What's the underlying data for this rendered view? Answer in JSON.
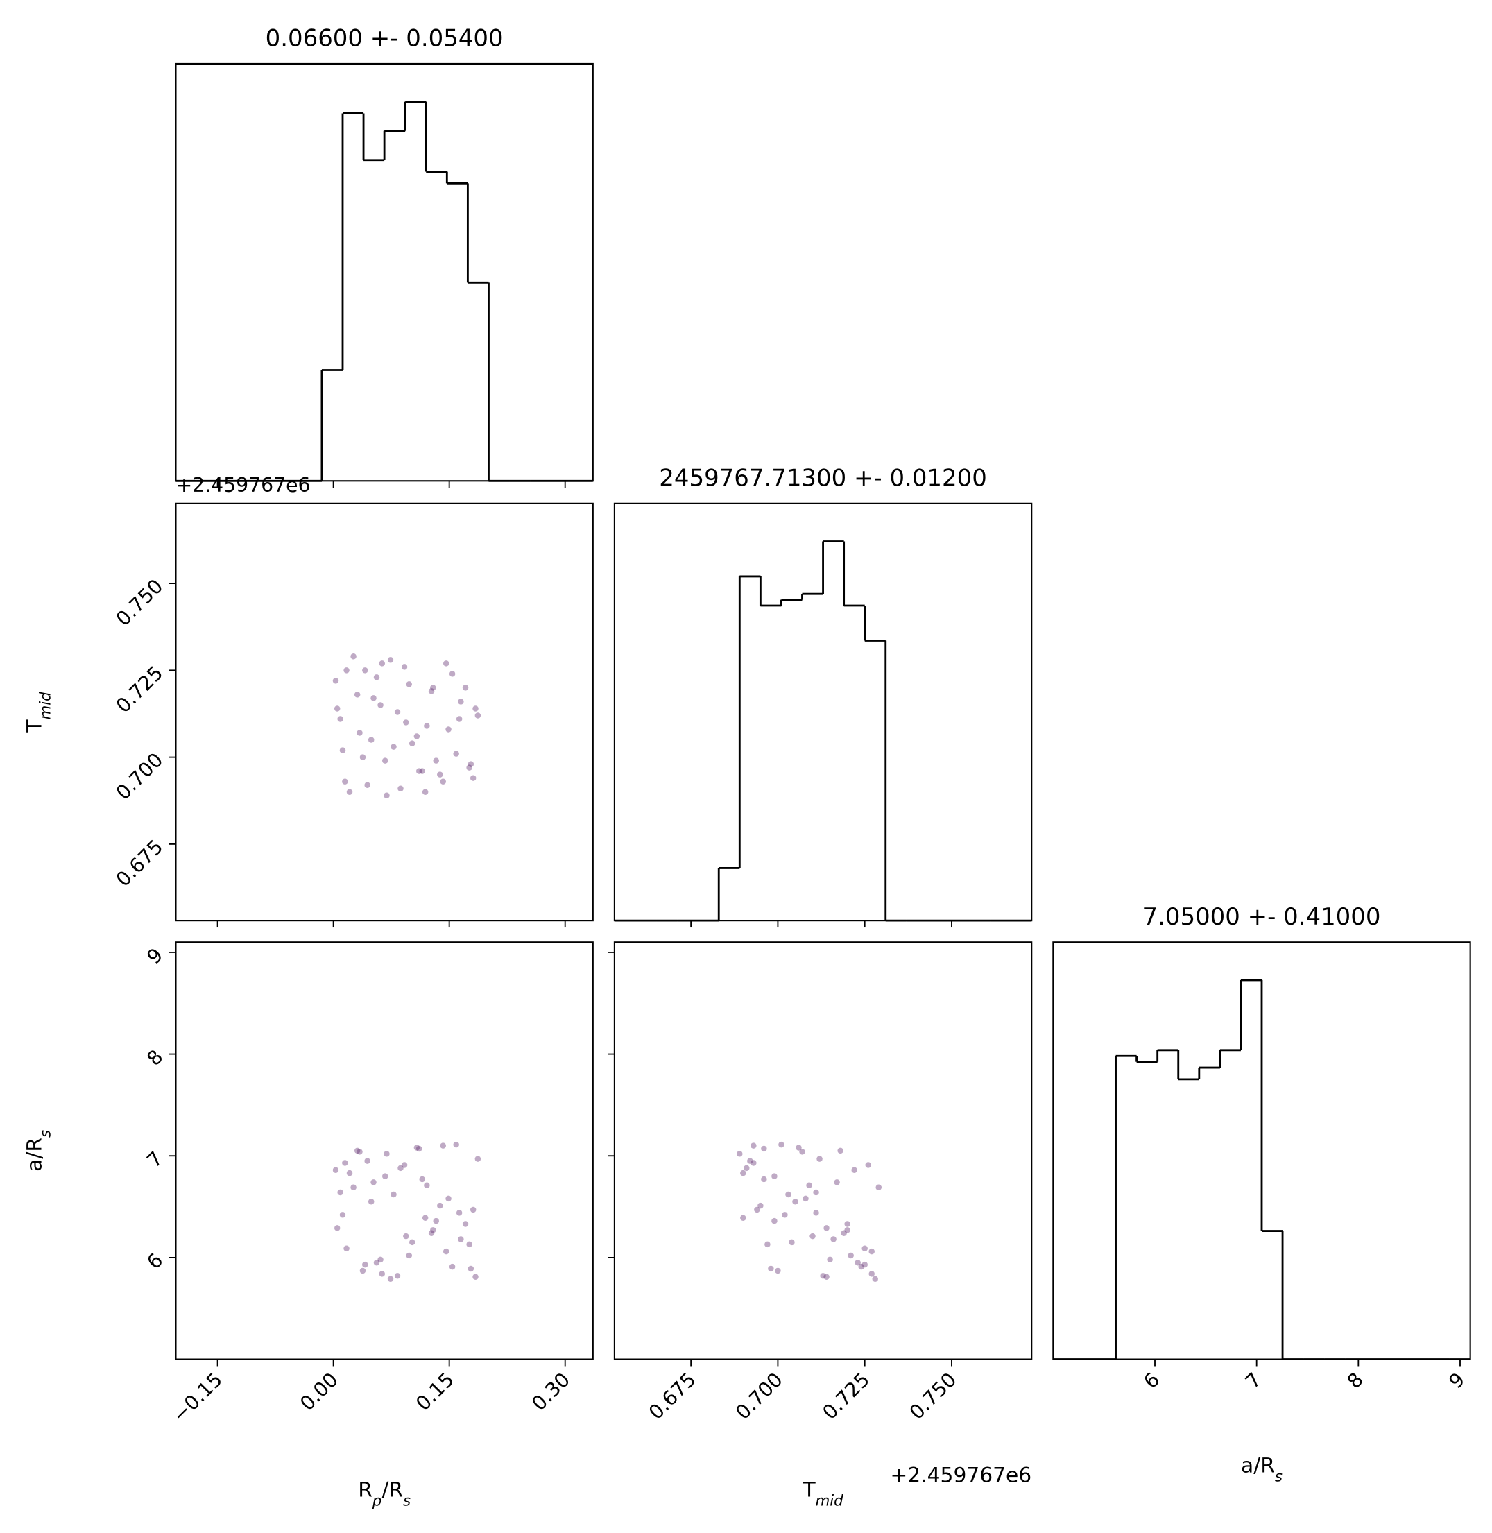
{
  "chart_data": [
    {
      "type": "hist",
      "title": "0.06600 +- 0.05400",
      "color": "#000000",
      "bins": [
        -0.204,
        -0.177,
        -0.15,
        -0.123,
        -0.096,
        -0.069,
        -0.042,
        -0.015,
        0.012,
        0.039,
        0.066,
        0.093,
        0.12,
        0.147,
        0.174,
        0.201,
        0.228,
        0.255,
        0.282,
        0.309,
        0.336
      ],
      "counts": [
        0,
        0,
        0,
        0,
        0,
        0,
        0,
        19,
        63,
        55,
        60,
        65,
        53,
        51,
        34,
        0,
        0,
        0,
        0,
        0
      ],
      "xlim": [
        -0.204,
        0.336
      ],
      "ylim": [
        0,
        71.5
      ],
      "xticks": [
        {
          "value": -0.15,
          "label": "−0.15"
        },
        {
          "value": 0,
          "label": "0.00"
        },
        {
          "value": 0.15,
          "label": "0.15"
        },
        {
          "value": 0.3,
          "label": "0.30"
        }
      ],
      "show_xticklabels": false
    },
    {
      "type": "scatter",
      "color": "#5e2a6e",
      "y_offset_text": "+2.459767e6",
      "ylabel": [
        {
          "text": "T"
        },
        {
          "text": "mid",
          "sub": true
        }
      ],
      "x": [
        0.012,
        0.154,
        0.087,
        0.031,
        0.176,
        0.063,
        0.121,
        0.005,
        0.142,
        0.098,
        0.049,
        0.187,
        0.074,
        0.133,
        0.021,
        0.165,
        0.108,
        0.056,
        0.009,
        0.181,
        0.092,
        0.038,
        0.127,
        0.069,
        0.149,
        0.017,
        0.115,
        0.083,
        0.171,
        0.044,
        0.102,
        0.026,
        0.159,
        0.061,
        0.138,
        0.003,
        0.094,
        0.178,
        0.052,
        0.119,
        0.034,
        0.146,
        0.078,
        0.184,
        0.015,
        0.129,
        0.067,
        0.163,
        0.041,
        0.111
      ],
      "y": [
        0.702,
        0.724,
        0.691,
        0.718,
        0.697,
        0.727,
        0.709,
        0.714,
        0.693,
        0.721,
        0.705,
        0.712,
        0.728,
        0.699,
        0.69,
        0.716,
        0.706,
        0.723,
        0.711,
        0.694,
        0.726,
        0.7,
        0.719,
        0.689,
        0.708,
        0.725,
        0.696,
        0.713,
        0.72,
        0.692,
        0.704,
        0.729,
        0.701,
        0.715,
        0.695,
        0.722,
        0.71,
        0.698,
        0.717,
        0.69,
        0.707,
        0.727,
        0.703,
        0.714,
        0.693,
        0.72,
        0.699,
        0.711,
        0.725,
        0.696
      ],
      "xlim": [
        -0.204,
        0.336
      ],
      "ylim": [
        0.653,
        0.773
      ],
      "xticks": [
        {
          "value": -0.15,
          "label": "−0.15"
        },
        {
          "value": 0,
          "label": "0.00"
        },
        {
          "value": 0.15,
          "label": "0.15"
        },
        {
          "value": 0.3,
          "label": "0.30"
        }
      ],
      "yticks": [
        0.675,
        {
          "value": 0.7,
          "label": "0.700"
        },
        0.725,
        {
          "value": 0.75,
          "label": "0.750"
        }
      ],
      "show_xticklabels": false,
      "show_yticklabels": true
    },
    {
      "type": "hist",
      "title": "2459767.71300 +- 0.01200",
      "color": "#000000",
      "bins": [
        0.653,
        0.659,
        0.665,
        0.671,
        0.677,
        0.683,
        0.689,
        0.695,
        0.701,
        0.707,
        0.713,
        0.719,
        0.725,
        0.731,
        0.737,
        0.743,
        0.749,
        0.755,
        0.761,
        0.767,
        0.773
      ],
      "counts": [
        0,
        0,
        0,
        0,
        0,
        9,
        59,
        54,
        55,
        56,
        65,
        54,
        48,
        0,
        0,
        0,
        0,
        0,
        0,
        0
      ],
      "xlim": [
        0.653,
        0.773
      ],
      "ylim": [
        0,
        71.5
      ],
      "xticks": [
        0.675,
        {
          "value": 0.7,
          "label": "0.700"
        },
        0.725,
        {
          "value": 0.75,
          "label": "0.750"
        }
      ],
      "show_xticklabels": false
    },
    {
      "type": "scatter",
      "color": "#5e2a6e",
      "xlabel": [
        {
          "text": "R"
        },
        {
          "text": "p",
          "sub": true
        },
        {
          "text": "/R"
        },
        {
          "text": "s",
          "sub": true
        }
      ],
      "ylabel": [
        {
          "text": "a/R"
        },
        {
          "text": "s",
          "sub": true
        }
      ],
      "x": [
        0.012,
        0.154,
        0.087,
        0.031,
        0.176,
        0.063,
        0.121,
        0.005,
        0.142,
        0.098,
        0.049,
        0.187,
        0.074,
        0.133,
        0.021,
        0.165,
        0.108,
        0.056,
        0.009,
        0.181,
        0.092,
        0.038,
        0.127,
        0.069,
        0.149,
        0.017,
        0.115,
        0.083,
        0.171,
        0.044,
        0.102,
        0.026,
        0.159,
        0.061,
        0.138,
        0.003,
        0.094,
        0.178,
        0.052,
        0.119,
        0.034,
        0.146,
        0.078,
        0.184,
        0.015,
        0.129,
        0.067,
        0.163,
        0.041,
        0.111
      ],
      "y": [
        6.42,
        5.91,
        6.88,
        7.05,
        6.13,
        5.84,
        6.71,
        6.29,
        7.1,
        6.02,
        6.55,
        6.97,
        5.79,
        6.36,
        6.83,
        6.18,
        7.08,
        5.95,
        6.64,
        6.47,
        6.91,
        5.87,
        6.24,
        7.02,
        6.58,
        6.09,
        6.77,
        5.82,
        6.33,
        6.95,
        6.15,
        6.69,
        7.11,
        5.98,
        6.51,
        6.86,
        6.21,
        5.89,
        6.74,
        6.39,
        7.04,
        6.06,
        6.62,
        5.81,
        6.93,
        6.27,
        6.8,
        6.44,
        5.93,
        7.07
      ],
      "xlim": [
        -0.204,
        0.336
      ],
      "ylim": [
        5.0,
        9.1
      ],
      "xticks": [
        {
          "value": -0.15,
          "label": "−0.15"
        },
        {
          "value": 0,
          "label": "0.00"
        },
        {
          "value": 0.15,
          "label": "0.15"
        },
        {
          "value": 0.3,
          "label": "0.30"
        }
      ],
      "yticks": [
        6,
        7,
        8,
        9
      ],
      "show_xticklabels": true,
      "show_yticklabels": true
    },
    {
      "type": "scatter",
      "color": "#5e2a6e",
      "x_offset_text": "+2.459767e6",
      "xlabel": [
        {
          "text": "T"
        },
        {
          "text": "mid",
          "sub": true
        }
      ],
      "x": [
        0.702,
        0.724,
        0.691,
        0.718,
        0.697,
        0.727,
        0.709,
        0.714,
        0.693,
        0.721,
        0.705,
        0.712,
        0.728,
        0.699,
        0.69,
        0.716,
        0.706,
        0.723,
        0.711,
        0.694,
        0.726,
        0.7,
        0.719,
        0.689,
        0.708,
        0.725,
        0.696,
        0.713,
        0.72,
        0.692,
        0.704,
        0.729,
        0.701,
        0.715,
        0.695,
        0.722,
        0.71,
        0.698,
        0.717,
        0.69,
        0.707,
        0.727,
        0.703,
        0.714,
        0.693,
        0.72,
        0.699,
        0.711,
        0.725,
        0.696
      ],
      "y": [
        6.42,
        5.91,
        6.88,
        7.05,
        6.13,
        5.84,
        6.71,
        6.29,
        7.1,
        6.02,
        6.55,
        6.97,
        5.79,
        6.36,
        6.83,
        6.18,
        7.08,
        5.95,
        6.64,
        6.47,
        6.91,
        5.87,
        6.24,
        7.02,
        6.58,
        6.09,
        6.77,
        5.82,
        6.33,
        6.95,
        6.15,
        6.69,
        7.11,
        5.98,
        6.51,
        6.86,
        6.21,
        5.89,
        6.74,
        6.39,
        7.04,
        6.06,
        6.62,
        5.81,
        6.93,
        6.27,
        6.8,
        6.44,
        5.93,
        7.07
      ],
      "xlim": [
        0.653,
        0.773
      ],
      "ylim": [
        5.0,
        9.1
      ],
      "xticks": [
        0.675,
        {
          "value": 0.7,
          "label": "0.700"
        },
        0.725,
        {
          "value": 0.75,
          "label": "0.750"
        }
      ],
      "yticks": [
        6,
        7,
        8,
        9
      ],
      "show_xticklabels": true,
      "show_yticklabels": false
    },
    {
      "type": "hist",
      "title": "7.05000 +- 0.41000",
      "color": "#000000",
      "xlabel": [
        {
          "text": "a/R"
        },
        {
          "text": "s",
          "sub": true
        }
      ],
      "bins": [
        5,
        5.205,
        5.41,
        5.615,
        5.82,
        6.025,
        6.23,
        6.435,
        6.64,
        6.845,
        7.05,
        7.255,
        7.46,
        7.665,
        7.87,
        8.075,
        8.28,
        8.485,
        8.69,
        8.895,
        9.1
      ],
      "counts": [
        0,
        0,
        0,
        52,
        51,
        53,
        48,
        50,
        53,
        65,
        22,
        0,
        0,
        0,
        0,
        0,
        0,
        0,
        0,
        0
      ],
      "xlim": [
        5.0,
        9.1
      ],
      "ylim": [
        0,
        71.5
      ],
      "xticks": [
        6,
        7,
        8,
        9
      ],
      "show_xticklabels": true
    }
  ]
}
